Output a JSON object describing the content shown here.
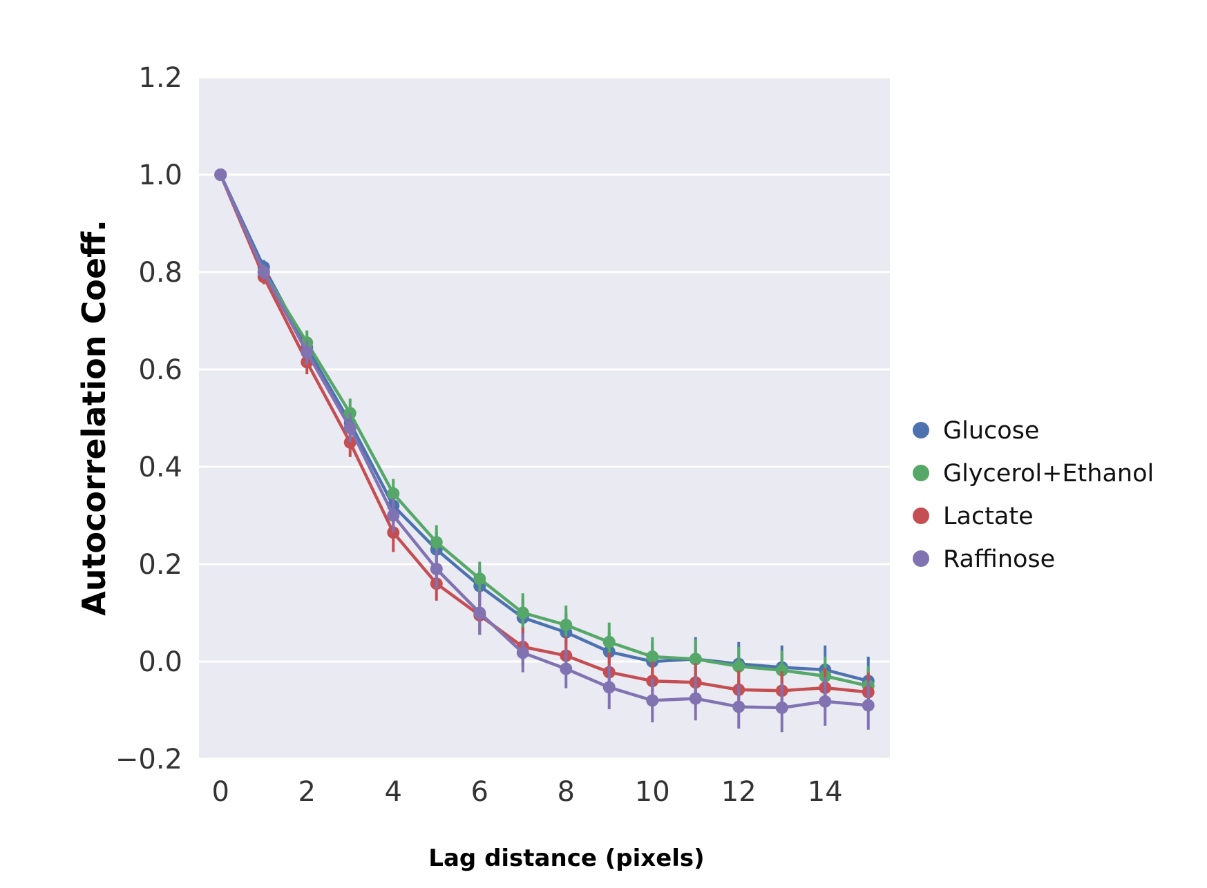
{
  "chart_data": {
    "type": "line",
    "xlabel": "Lag distance (pixels)",
    "ylabel": "Autocorrelation Coeff.",
    "xlim": [
      -0.5,
      15.5
    ],
    "ylim": [
      -0.2,
      1.2
    ],
    "x_ticks": [
      0,
      2,
      4,
      6,
      8,
      10,
      12,
      14
    ],
    "y_ticks": [
      -0.2,
      0.0,
      0.2,
      0.4,
      0.6,
      0.8,
      1.0,
      1.2
    ],
    "y_tick_labels": [
      "−0.2",
      "0.0",
      "0.2",
      "0.4",
      "0.6",
      "0.8",
      "1.0",
      "1.2"
    ],
    "grid": true,
    "background": "#eaeaf2",
    "legend_placement": "right",
    "x": [
      0,
      1,
      2,
      3,
      4,
      5,
      6,
      7,
      8,
      9,
      10,
      11,
      12,
      13,
      14,
      15
    ],
    "series": [
      {
        "name": "Glucose",
        "color": "#4c72b0",
        "values": [
          1.0,
          0.81,
          0.645,
          0.49,
          0.32,
          0.23,
          0.155,
          0.09,
          0.06,
          0.02,
          0.0,
          0.005,
          -0.005,
          -0.012,
          -0.017,
          -0.04
        ],
        "errors": [
          0.0,
          0.015,
          0.025,
          0.03,
          0.035,
          0.035,
          0.04,
          0.04,
          0.04,
          0.04,
          0.04,
          0.045,
          0.045,
          0.045,
          0.05,
          0.05
        ]
      },
      {
        "name": "Glycerol+Ethanol",
        "color": "#55a868",
        "values": [
          1.0,
          0.8,
          0.655,
          0.51,
          0.345,
          0.245,
          0.17,
          0.1,
          0.075,
          0.04,
          0.01,
          0.005,
          -0.01,
          -0.018,
          -0.03,
          -0.05
        ],
        "errors": [
          0.0,
          0.015,
          0.025,
          0.03,
          0.03,
          0.035,
          0.035,
          0.04,
          0.04,
          0.04,
          0.04,
          0.04,
          0.04,
          0.04,
          0.04,
          0.04
        ]
      },
      {
        "name": "Lactate",
        "color": "#c44e52",
        "values": [
          1.0,
          0.79,
          0.615,
          0.45,
          0.265,
          0.16,
          0.095,
          0.03,
          0.012,
          -0.022,
          -0.04,
          -0.043,
          -0.058,
          -0.06,
          -0.054,
          -0.063
        ],
        "errors": [
          0.0,
          0.015,
          0.025,
          0.03,
          0.04,
          0.035,
          0.04,
          0.04,
          0.04,
          0.04,
          0.04,
          0.04,
          0.04,
          0.04,
          0.04,
          0.04
        ]
      },
      {
        "name": "Raffinose",
        "color": "#8172b2",
        "values": [
          1.0,
          0.8,
          0.635,
          0.48,
          0.3,
          0.19,
          0.1,
          0.018,
          -0.015,
          -0.053,
          -0.08,
          -0.076,
          -0.093,
          -0.095,
          -0.082,
          -0.09
        ],
        "errors": [
          0.0,
          0.015,
          0.025,
          0.03,
          0.035,
          0.04,
          0.045,
          0.04,
          0.04,
          0.045,
          0.045,
          0.045,
          0.045,
          0.05,
          0.05,
          0.05
        ]
      }
    ]
  }
}
